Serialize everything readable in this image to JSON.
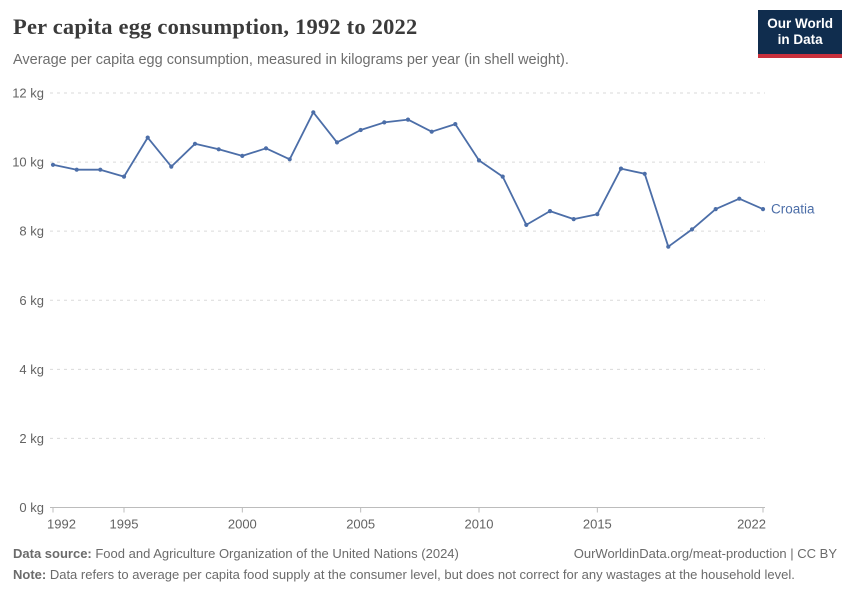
{
  "header": {
    "title": "Per capita egg consumption, 1992 to 2022",
    "subtitle": "Average per capita egg consumption, measured in kilograms per year (in shell weight).",
    "logo": {
      "line1": "Our World",
      "line2": "in Data"
    }
  },
  "chart_data": {
    "type": "line",
    "title": "Per capita egg consumption, 1992 to 2022",
    "xlabel": "",
    "ylabel": "kilograms per year",
    "x": [
      1992,
      1993,
      1994,
      1995,
      1996,
      1997,
      1998,
      1999,
      2000,
      2001,
      2002,
      2003,
      2004,
      2005,
      2006,
      2007,
      2008,
      2009,
      2010,
      2011,
      2012,
      2013,
      2014,
      2015,
      2016,
      2017,
      2018,
      2019,
      2020,
      2021,
      2022
    ],
    "series": [
      {
        "name": "Croatia",
        "values": [
          9.92,
          9.78,
          9.78,
          9.58,
          10.71,
          9.87,
          10.53,
          10.37,
          10.18,
          10.4,
          10.08,
          11.44,
          10.57,
          10.93,
          11.15,
          11.23,
          10.88,
          11.1,
          10.05,
          9.58,
          8.18,
          8.58,
          8.35,
          8.49,
          9.81,
          9.66,
          7.55,
          8.05,
          8.64,
          8.94,
          8.64
        ]
      }
    ],
    "ylim": [
      0,
      12
    ],
    "yticks": [
      0,
      2,
      4,
      6,
      8,
      10,
      12
    ],
    "ytick_suffix": " kg",
    "xticks": [
      1992,
      1995,
      2000,
      2005,
      2010,
      2015,
      2022
    ],
    "grid": "horizontal-dashed",
    "legend": "label-at-line-end"
  },
  "footer": {
    "source_label": "Data source:",
    "source_text": " Food and Agriculture Organization of the United Nations (2024)",
    "attribution": "OurWorldinData.org/meat-production | CC BY",
    "note_label": "Note:",
    "note_text": " Data refers to average per capita food supply at the consumer level, but does not correct for any wastages at the household level."
  },
  "colors": {
    "line": "#4c6ea8",
    "grid": "#dadada",
    "axis": "#bcbcbc",
    "tick_text": "#636363",
    "logo_bg": "#102d4e",
    "logo_accent": "#c9303c"
  }
}
